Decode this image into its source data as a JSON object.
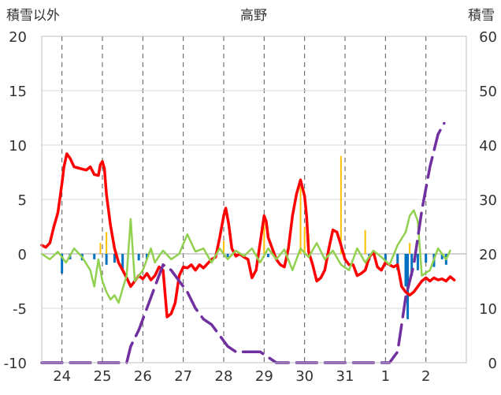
{
  "chart_data": {
    "type": "line",
    "title": "高野",
    "ylabel_left": "積雪以外",
    "ylabel_right": "積雪",
    "ylim_left": [
      -10,
      20
    ],
    "yticks_left": [
      "20",
      "15",
      "10",
      "5",
      "0",
      "-5",
      "-10"
    ],
    "ylim_right": [
      0,
      60
    ],
    "yticks_right": [
      "60",
      "50",
      "40",
      "30",
      "20",
      "10",
      "0"
    ],
    "x_range_days": [
      0,
      10.5
    ],
    "categories": [
      "24",
      "25",
      "26",
      "27",
      "28",
      "29",
      "30",
      "31",
      "1",
      "2"
    ],
    "grid": true,
    "colors": {
      "temperature": "#ff0000",
      "humidity_change": "#92d050",
      "precipitation": "#ffc000",
      "snow_change": "#0070c0",
      "snow_depth": "#7030a0"
    },
    "series": [
      {
        "key": "temperature",
        "axis": "left",
        "points": [
          [
            0,
            0.8
          ],
          [
            0.1,
            0.6
          ],
          [
            0.2,
            1.0
          ],
          [
            0.3,
            2.5
          ],
          [
            0.4,
            3.8
          ],
          [
            0.5,
            6.5
          ],
          [
            0.55,
            8.0
          ],
          [
            0.62,
            9.2
          ],
          [
            0.7,
            8.8
          ],
          [
            0.8,
            8.0
          ],
          [
            0.9,
            7.9
          ],
          [
            1.0,
            7.8
          ],
          [
            1.1,
            7.7
          ],
          [
            1.2,
            8.0
          ],
          [
            1.3,
            7.3
          ],
          [
            1.4,
            7.2
          ],
          [
            1.45,
            8.2
          ],
          [
            1.5,
            8.5
          ],
          [
            1.55,
            7.8
          ],
          [
            1.6,
            5.5
          ],
          [
            1.7,
            2.6
          ],
          [
            1.8,
            0.5
          ],
          [
            1.9,
            -0.8
          ],
          [
            2.0,
            -1.5
          ],
          [
            2.1,
            -2.2
          ],
          [
            2.2,
            -3.0
          ],
          [
            2.3,
            -2.5
          ],
          [
            2.4,
            -2.0
          ],
          [
            2.5,
            -2.3
          ],
          [
            2.6,
            -1.8
          ],
          [
            2.7,
            -2.4
          ],
          [
            2.8,
            -2.0
          ],
          [
            2.9,
            -1.2
          ],
          [
            3.0,
            -1.5
          ],
          [
            3.1,
            -5.8
          ],
          [
            3.2,
            -5.5
          ],
          [
            3.3,
            -4.5
          ],
          [
            3.4,
            -2.0
          ],
          [
            3.5,
            -1.2
          ],
          [
            3.6,
            -1.3
          ],
          [
            3.7,
            -1.0
          ],
          [
            3.8,
            -1.5
          ],
          [
            3.9,
            -1.0
          ],
          [
            4.0,
            -1.3
          ],
          [
            4.2,
            -0.5
          ],
          [
            4.3,
            -0.3
          ],
          [
            4.4,
            1.5
          ],
          [
            4.5,
            3.5
          ],
          [
            4.55,
            4.2
          ],
          [
            4.62,
            2.8
          ],
          [
            4.7,
            0.5
          ],
          [
            4.8,
            -0.2
          ],
          [
            4.9,
            0.0
          ],
          [
            5.0,
            -0.3
          ],
          [
            5.1,
            -0.5
          ],
          [
            5.2,
            -2.2
          ],
          [
            5.3,
            -1.5
          ],
          [
            5.4,
            1.0
          ],
          [
            5.5,
            3.5
          ],
          [
            5.55,
            3.0
          ],
          [
            5.6,
            1.5
          ],
          [
            5.7,
            0.5
          ],
          [
            5.8,
            -0.5
          ],
          [
            5.9,
            -1.0
          ],
          [
            6.0,
            -1.2
          ],
          [
            6.1,
            0.5
          ],
          [
            6.2,
            3.5
          ],
          [
            6.3,
            5.5
          ],
          [
            6.4,
            6.8
          ],
          [
            6.5,
            5.3
          ],
          [
            6.55,
            3.5
          ],
          [
            6.6,
            0.2
          ],
          [
            6.7,
            -1.0
          ],
          [
            6.8,
            -2.5
          ],
          [
            6.9,
            -2.2
          ],
          [
            7.0,
            -1.5
          ],
          [
            7.1,
            0.5
          ],
          [
            7.2,
            2.2
          ],
          [
            7.3,
            2.0
          ],
          [
            7.4,
            0.8
          ],
          [
            7.5,
            -0.5
          ],
          [
            7.6,
            -1.0
          ],
          [
            7.7,
            -1.0
          ],
          [
            7.8,
            -2.0
          ],
          [
            7.9,
            -1.8
          ],
          [
            8.0,
            -1.5
          ],
          [
            8.1,
            -0.3
          ],
          [
            8.2,
            0.2
          ],
          [
            8.3,
            -1.2
          ],
          [
            8.4,
            -1.5
          ],
          [
            8.5,
            -0.8
          ],
          [
            8.6,
            -1.0
          ],
          [
            8.7,
            -1.2
          ],
          [
            8.8,
            -1.0
          ],
          [
            8.9,
            -3.0
          ],
          [
            9.0,
            -3.5
          ],
          [
            9.1,
            -3.8
          ],
          [
            9.2,
            -3.5
          ],
          [
            9.3,
            -3.0
          ],
          [
            9.4,
            -2.5
          ],
          [
            9.5,
            -2.2
          ],
          [
            9.6,
            -2.5
          ],
          [
            9.7,
            -2.2
          ],
          [
            9.8,
            -2.4
          ],
          [
            9.9,
            -2.3
          ],
          [
            10.0,
            -2.5
          ],
          [
            10.1,
            -2.1
          ],
          [
            10.2,
            -2.4
          ]
        ]
      },
      {
        "key": "humidity_change",
        "axis": "left",
        "points": [
          [
            0,
            0.0
          ],
          [
            0.2,
            -0.5
          ],
          [
            0.4,
            0.2
          ],
          [
            0.6,
            -0.8
          ],
          [
            0.8,
            0.5
          ],
          [
            1.0,
            -0.3
          ],
          [
            1.2,
            -1.5
          ],
          [
            1.3,
            -3.0
          ],
          [
            1.4,
            -0.5
          ],
          [
            1.5,
            -2.5
          ],
          [
            1.6,
            -3.5
          ],
          [
            1.7,
            -4.2
          ],
          [
            1.8,
            -3.8
          ],
          [
            1.9,
            -4.5
          ],
          [
            2.0,
            -3.2
          ],
          [
            2.1,
            -2.0
          ],
          [
            2.2,
            3.2
          ],
          [
            2.3,
            -2.5
          ],
          [
            2.4,
            -2.0
          ],
          [
            2.5,
            -1.5
          ],
          [
            2.6,
            -0.5
          ],
          [
            2.7,
            0.5
          ],
          [
            2.8,
            -0.8
          ],
          [
            2.9,
            -0.2
          ],
          [
            3.0,
            0.3
          ],
          [
            3.2,
            -0.5
          ],
          [
            3.4,
            0.0
          ],
          [
            3.6,
            1.8
          ],
          [
            3.8,
            0.2
          ],
          [
            4.0,
            0.5
          ],
          [
            4.2,
            -0.8
          ],
          [
            4.4,
            0.5
          ],
          [
            4.6,
            -0.5
          ],
          [
            4.8,
            0.3
          ],
          [
            5.0,
            -0.2
          ],
          [
            5.2,
            0.5
          ],
          [
            5.4,
            -0.8
          ],
          [
            5.6,
            0.5
          ],
          [
            5.8,
            -0.5
          ],
          [
            6.0,
            0.4
          ],
          [
            6.2,
            -1.5
          ],
          [
            6.4,
            0.5
          ],
          [
            6.6,
            -0.3
          ],
          [
            6.8,
            1.0
          ],
          [
            7.0,
            -0.5
          ],
          [
            7.2,
            0.3
          ],
          [
            7.4,
            -1.0
          ],
          [
            7.6,
            -1.5
          ],
          [
            7.8,
            0.5
          ],
          [
            8.0,
            -0.8
          ],
          [
            8.2,
            0.3
          ],
          [
            8.4,
            -0.3
          ],
          [
            8.6,
            -1.0
          ],
          [
            8.8,
            0.8
          ],
          [
            9.0,
            2.0
          ],
          [
            9.1,
            3.5
          ],
          [
            9.2,
            4.0
          ],
          [
            9.3,
            3.0
          ],
          [
            9.4,
            -2.0
          ],
          [
            9.6,
            -1.5
          ],
          [
            9.8,
            0.5
          ],
          [
            10.0,
            -0.5
          ],
          [
            10.1,
            0.3
          ]
        ]
      },
      {
        "key": "snow_depth",
        "axis": "right",
        "points": [
          [
            0,
            0
          ],
          [
            1.5,
            0
          ],
          [
            1.6,
            0
          ],
          [
            2.0,
            0
          ],
          [
            2.1,
            0
          ],
          [
            2.2,
            3
          ],
          [
            2.4,
            6
          ],
          [
            2.6,
            10
          ],
          [
            2.8,
            14
          ],
          [
            3.0,
            18
          ],
          [
            3.2,
            17
          ],
          [
            3.4,
            15
          ],
          [
            3.6,
            13
          ],
          [
            3.8,
            10
          ],
          [
            4.0,
            8
          ],
          [
            4.2,
            7
          ],
          [
            4.4,
            5
          ],
          [
            4.6,
            3
          ],
          [
            4.8,
            2
          ],
          [
            5.0,
            2
          ],
          [
            5.2,
            2
          ],
          [
            5.4,
            2
          ],
          [
            5.6,
            1
          ],
          [
            5.8,
            0
          ],
          [
            6.0,
            0
          ],
          [
            8.0,
            0
          ],
          [
            8.2,
            0
          ],
          [
            8.6,
            0
          ],
          [
            8.8,
            2
          ],
          [
            9.0,
            12
          ],
          [
            9.2,
            18
          ],
          [
            9.4,
            28
          ],
          [
            9.6,
            36
          ],
          [
            9.8,
            42
          ],
          [
            9.95,
            44
          ]
        ]
      }
    ],
    "bars": [
      {
        "key": "precipitation",
        "axis": "left",
        "points": [
          [
            1.45,
            1.0
          ],
          [
            1.6,
            2.0
          ],
          [
            4.5,
            1.2
          ],
          [
            5.5,
            2.8
          ],
          [
            6.4,
            6.2
          ],
          [
            6.5,
            2.5
          ],
          [
            6.6,
            1.8
          ],
          [
            6.6,
            1.3
          ],
          [
            7.4,
            9.0
          ],
          [
            8.0,
            2.2
          ],
          [
            9.1,
            1.0
          ]
        ]
      },
      {
        "key": "snow_change",
        "axis": "left",
        "points": [
          [
            0.5,
            -1.8
          ],
          [
            0.7,
            -0.5
          ],
          [
            1.0,
            -0.6
          ],
          [
            1.3,
            -0.5
          ],
          [
            1.6,
            -1.0
          ],
          [
            1.8,
            -0.8
          ],
          [
            2.0,
            -1.5
          ],
          [
            2.4,
            -0.6
          ],
          [
            2.6,
            -0.5
          ],
          [
            4.6,
            -0.3
          ],
          [
            5.6,
            -0.3
          ],
          [
            8.1,
            -0.6
          ],
          [
            8.5,
            -0.8
          ],
          [
            8.8,
            -1.5
          ],
          [
            9.0,
            -3.0
          ],
          [
            9.05,
            -6.0
          ],
          [
            9.15,
            -2.0
          ],
          [
            9.3,
            -1.5
          ],
          [
            9.5,
            -0.8
          ],
          [
            9.7,
            -1.2
          ],
          [
            9.9,
            -0.5
          ],
          [
            10.0,
            -1.0
          ]
        ]
      }
    ]
  }
}
